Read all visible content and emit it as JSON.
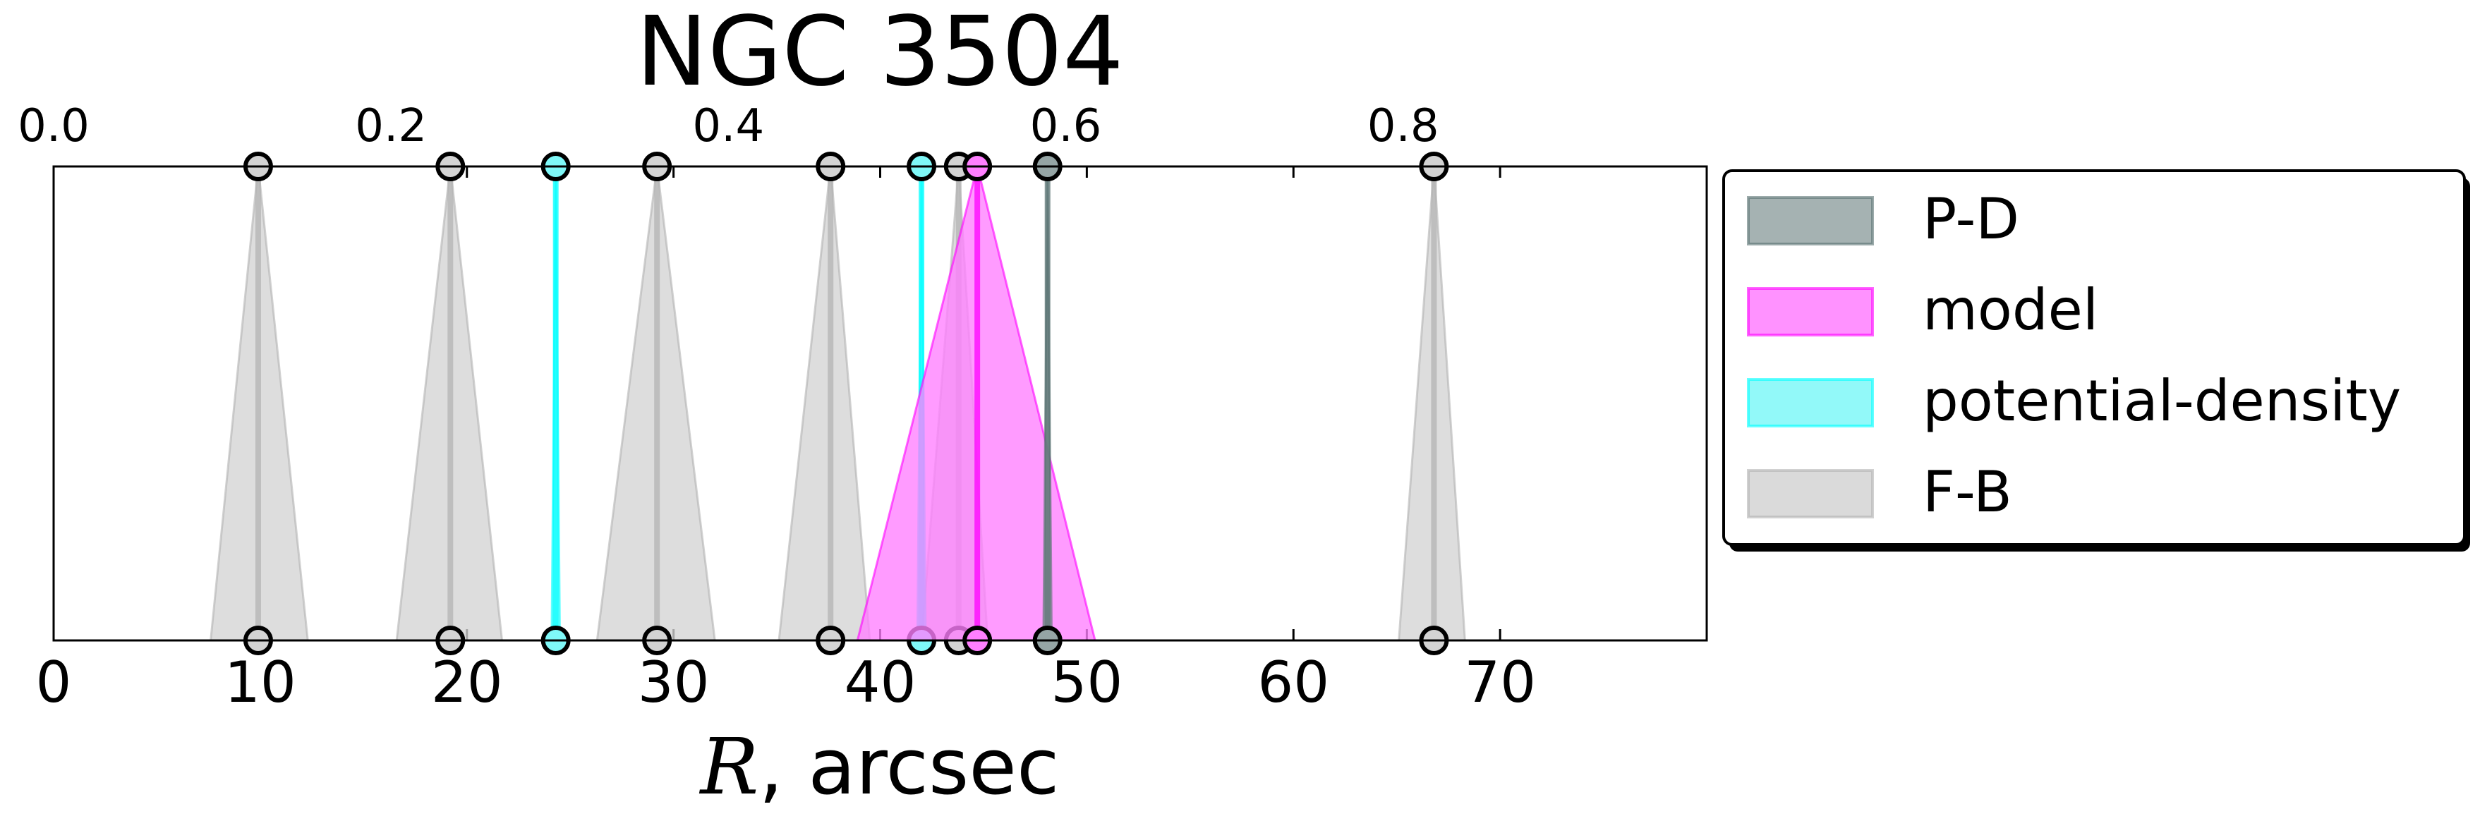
{
  "chart_data": {
    "type": "marker-triangle",
    "title": "NGC 3504",
    "xlabel_math": "R",
    "xlabel_text": ", arcsec",
    "xlim": [
      0,
      80
    ],
    "xticks": [
      0,
      10,
      20,
      30,
      40,
      50,
      60,
      70
    ],
    "top_axis_label": "",
    "top_xlim": [
      0.0,
      0.98
    ],
    "top_ticks": [
      "0.0",
      "0.2",
      "0.4",
      "0.6",
      "0.8"
    ],
    "top_tick_values": [
      0.0,
      0.2,
      0.4,
      0.6,
      0.8
    ],
    "grid": false,
    "legend_position": "right",
    "series": [
      {
        "name": "F-B",
        "color": "#b3b3b3",
        "fill": "#d3d3d3",
        "markers": [
          {
            "x": 9.9,
            "low": 7.6,
            "high": 12.3
          },
          {
            "x": 19.2,
            "low": 16.6,
            "high": 21.7
          },
          {
            "x": 29.2,
            "low": 26.3,
            "high": 32.0
          },
          {
            "x": 37.6,
            "low": 35.1,
            "high": 39.5
          },
          {
            "x": 43.8,
            "low": 42.0,
            "high": 45.2
          },
          {
            "x": 66.8,
            "low": 65.1,
            "high": 68.3
          }
        ]
      },
      {
        "name": "potential-density",
        "color": "#00ffff",
        "fill": "#7ff8f8",
        "markers": [
          {
            "x": 24.3,
            "low": 24.1,
            "high": 24.5
          },
          {
            "x": 42.0,
            "low": 41.8,
            "high": 42.2
          }
        ]
      },
      {
        "name": "model",
        "color": "#ff00ff",
        "fill": "#ff7fff",
        "markers": [
          {
            "x": 44.7,
            "low": 38.9,
            "high": 50.4
          }
        ]
      },
      {
        "name": "P-D",
        "color": "#587272",
        "fill": "#95a5a5",
        "markers": [
          {
            "x": 48.1,
            "low": 47.9,
            "high": 48.3
          }
        ]
      }
    ],
    "legend": [
      "P-D",
      "model",
      "potential-density",
      "F-B"
    ]
  }
}
